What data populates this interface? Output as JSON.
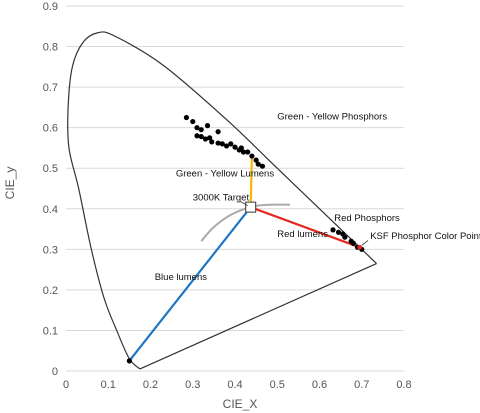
{
  "chart_data": {
    "type": "scatter",
    "title": "",
    "xlabel": "CIE_X",
    "ylabel": "CIE_y",
    "xlim": [
      0,
      0.8
    ],
    "ylim": [
      0,
      0.9
    ],
    "x_ticks": [
      "0",
      "0.1",
      "0.2",
      "0.3",
      "0.4",
      "0.5",
      "0.6",
      "0.7",
      "0.8"
    ],
    "y_ticks": [
      "0",
      "0.1",
      "0.2",
      "0.3",
      "0.4",
      "0.5",
      "0.6",
      "0.7",
      "0.8",
      "0.9"
    ],
    "grid": "horizontal",
    "spectral_locus": {
      "points": [
        [
          0.175,
          0.005
        ],
        [
          0.15,
          0.03
        ],
        [
          0.12,
          0.1
        ],
        [
          0.09,
          0.18
        ],
        [
          0.06,
          0.3
        ],
        [
          0.03,
          0.45
        ],
        [
          0.007,
          0.55
        ],
        [
          0.005,
          0.65
        ],
        [
          0.015,
          0.75
        ],
        [
          0.04,
          0.81
        ],
        [
          0.075,
          0.834
        ],
        [
          0.115,
          0.826
        ],
        [
          0.23,
          0.754
        ],
        [
          0.38,
          0.62
        ],
        [
          0.5,
          0.5
        ],
        [
          0.6,
          0.4
        ],
        [
          0.735,
          0.265
        ]
      ],
      "closing_line": [
        [
          0.735,
          0.265
        ],
        [
          0.175,
          0.005
        ]
      ],
      "color": "#333333"
    },
    "planckian_locus": {
      "points": [
        [
          0.32,
          0.32
        ],
        [
          0.35,
          0.355
        ],
        [
          0.39,
          0.385
        ],
        [
          0.44,
          0.405
        ],
        [
          0.48,
          0.41
        ],
        [
          0.53,
          0.41
        ]
      ],
      "color": "#aaaaaa"
    },
    "green_yellow_phosphors": [
      [
        0.285,
        0.625
      ],
      [
        0.3,
        0.615
      ],
      [
        0.31,
        0.6
      ],
      [
        0.32,
        0.595
      ],
      [
        0.335,
        0.605
      ],
      [
        0.36,
        0.59
      ],
      [
        0.31,
        0.58
      ],
      [
        0.32,
        0.578
      ],
      [
        0.33,
        0.572
      ],
      [
        0.34,
        0.575
      ],
      [
        0.345,
        0.565
      ],
      [
        0.36,
        0.562
      ],
      [
        0.37,
        0.56
      ],
      [
        0.38,
        0.555
      ],
      [
        0.39,
        0.56
      ],
      [
        0.4,
        0.552
      ],
      [
        0.41,
        0.545
      ],
      [
        0.42,
        0.54
      ],
      [
        0.415,
        0.55
      ],
      [
        0.43,
        0.54
      ],
      [
        0.44,
        0.53
      ],
      [
        0.45,
        0.52
      ],
      [
        0.455,
        0.51
      ],
      [
        0.465,
        0.505
      ]
    ],
    "red_phosphors": [
      [
        0.632,
        0.348
      ],
      [
        0.645,
        0.342
      ],
      [
        0.655,
        0.338
      ],
      [
        0.66,
        0.33
      ],
      [
        0.675,
        0.32
      ],
      [
        0.68,
        0.315
      ],
      [
        0.69,
        0.305
      ],
      [
        0.7,
        0.3
      ]
    ],
    "blue_point": [
      0.15,
      0.025
    ],
    "target_3000k": [
      0.437,
      0.404
    ],
    "ksf_point": [
      0.695,
      0.305
    ],
    "lines": [
      {
        "name": "Blue lumens",
        "from": [
          0.15,
          0.025
        ],
        "to": [
          0.437,
          0.404
        ],
        "color": "#1f77c4"
      },
      {
        "name": "Red lumens",
        "from": [
          0.437,
          0.404
        ],
        "to": [
          0.695,
          0.305
        ],
        "color": "#e32a22"
      },
      {
        "name": "Green - Yellow Lumens",
        "from": [
          0.437,
          0.404
        ],
        "to": [
          0.44,
          0.53
        ],
        "color": "#f5b800"
      }
    ],
    "annotations": [
      {
        "text": "Green - Yellow Phosphors",
        "at": [
          0.5,
          0.62
        ]
      },
      {
        "text": "Green - Yellow Lumens",
        "at": [
          0.26,
          0.48
        ]
      },
      {
        "text": "3000K Target",
        "at": [
          0.3,
          0.42
        ]
      },
      {
        "text": "Red Phosphors",
        "at": [
          0.635,
          0.37
        ]
      },
      {
        "text": "Red lumens",
        "at": [
          0.5,
          0.33
        ]
      },
      {
        "text": "KSF Phosphor Color Point",
        "at": [
          0.72,
          0.325
        ]
      },
      {
        "text": "Blue lumens",
        "at": [
          0.21,
          0.225
        ]
      }
    ]
  }
}
